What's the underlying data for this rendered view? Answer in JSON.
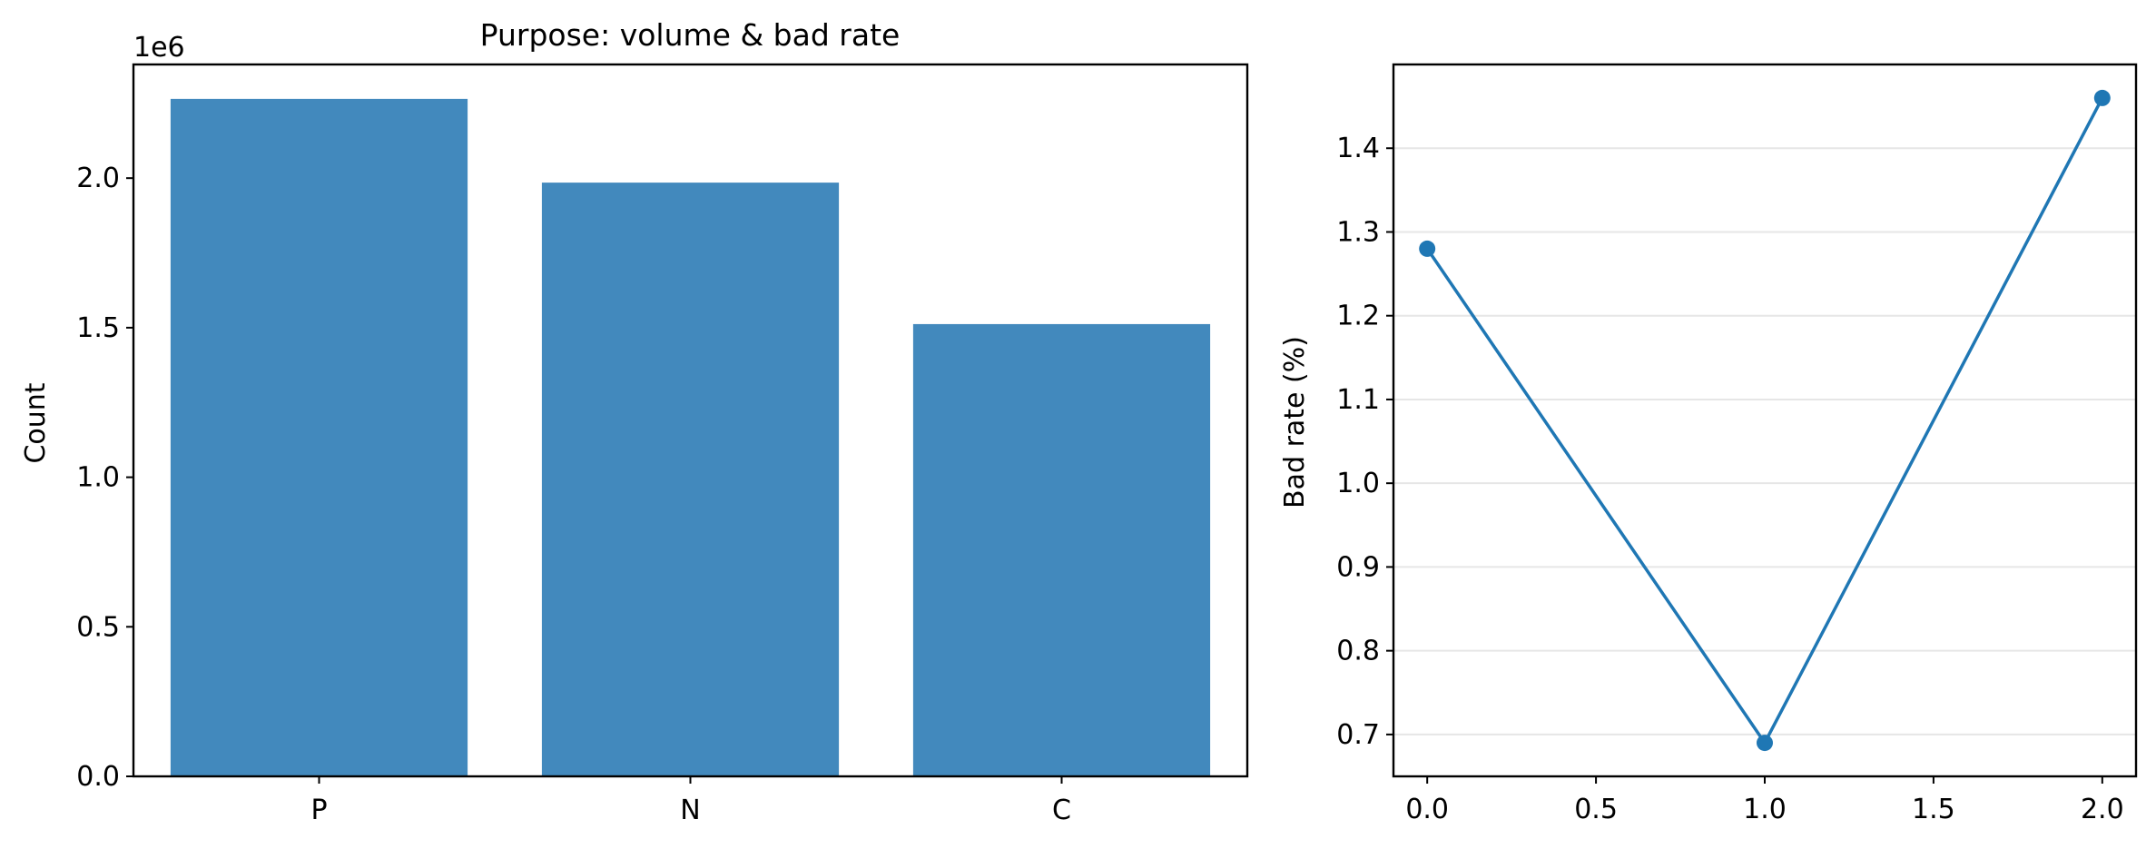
{
  "chart_data": [
    {
      "type": "bar",
      "title": "Purpose: volume & bad rate",
      "xlabel": "",
      "ylabel": "Count",
      "categories": [
        "P",
        "N",
        "C"
      ],
      "values": [
        2265000,
        1985000,
        1512000
      ],
      "ylim": [
        0,
        2380000
      ],
      "yticks": [
        0.0,
        0.5,
        1.0,
        1.5,
        2.0
      ],
      "ytick_labels": [
        "0.0",
        "0.5",
        "1.0",
        "1.5",
        "2.0"
      ],
      "y_offset_label": "1e6",
      "y_scale_factor": 1000000,
      "grid": false,
      "bar_color": "#4289bd"
    },
    {
      "type": "line",
      "title": "",
      "xlabel": "",
      "ylabel": "Bad rate (%)",
      "x": [
        0.0,
        1.0,
        2.0
      ],
      "y": [
        1.28,
        0.69,
        1.46
      ],
      "xlim": [
        -0.1,
        2.1
      ],
      "ylim": [
        0.65,
        1.5
      ],
      "xticks": [
        0.0,
        0.5,
        1.0,
        1.5,
        2.0
      ],
      "xtick_labels": [
        "0.0",
        "0.5",
        "1.0",
        "1.5",
        "2.0"
      ],
      "yticks": [
        0.7,
        0.8,
        0.9,
        1.0,
        1.1,
        1.2,
        1.3,
        1.4
      ],
      "ytick_labels": [
        "0.7",
        "0.8",
        "0.9",
        "1.0",
        "1.1",
        "1.2",
        "1.3",
        "1.4"
      ],
      "grid": true,
      "grid_axis": "y",
      "line_color": "#1f77b4"
    }
  ]
}
